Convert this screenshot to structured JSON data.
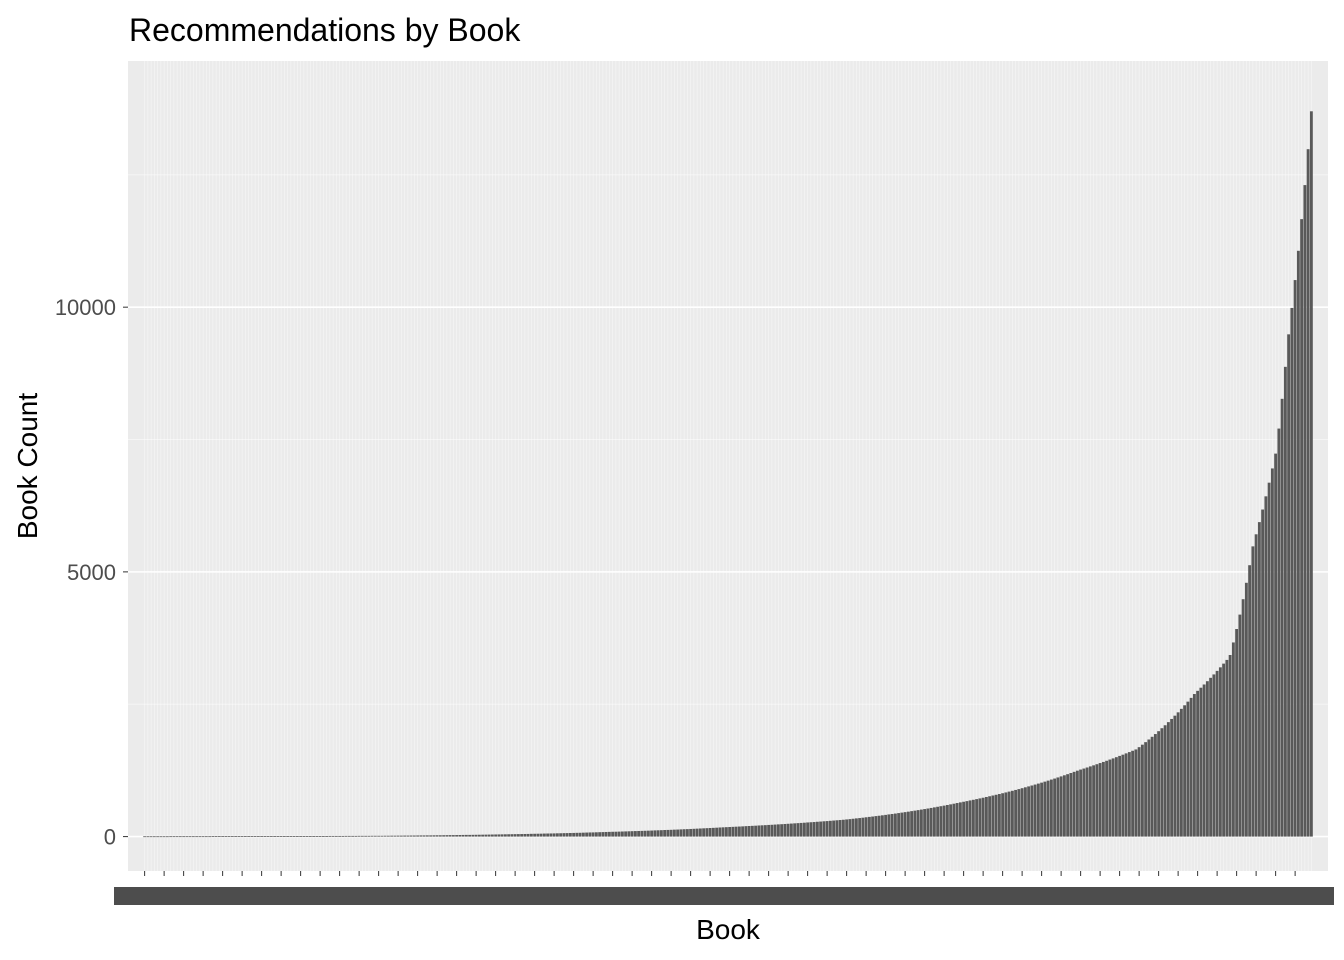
{
  "chart_data": {
    "type": "bar",
    "title": "Recommendations by Book",
    "xlabel": "Book",
    "ylabel": "Book Count",
    "ylim": [
      -650,
      14650
    ],
    "y_ticks": [
      0,
      5000,
      10000
    ],
    "y_tick_labels": [
      "0",
      "5000",
      "10000"
    ],
    "x_tick_labels_note": "x tick labels are dense and overlapping, rendered as an illegible band",
    "bar_count": 360,
    "sorted": "ascending",
    "profile_knots": [
      [
        0.0,
        5
      ],
      [
        0.1,
        8
      ],
      [
        0.2,
        15
      ],
      [
        0.3,
        40
      ],
      [
        0.4,
        90
      ],
      [
        0.5,
        180
      ],
      [
        0.6,
        320
      ],
      [
        0.7,
        650
      ],
      [
        0.8,
        1250
      ],
      [
        0.85,
        1650
      ],
      [
        0.9,
        2700
      ],
      [
        0.93,
        3400
      ],
      [
        0.95,
        5500
      ],
      [
        0.97,
        7300
      ],
      [
        0.98,
        9400
      ],
      [
        0.99,
        11300
      ],
      [
        1.0,
        13700
      ]
    ],
    "grid": true,
    "panel_background": "#ebebeb",
    "bar_color": "#595959",
    "grid_color": "#ffffff",
    "legend": "none"
  }
}
